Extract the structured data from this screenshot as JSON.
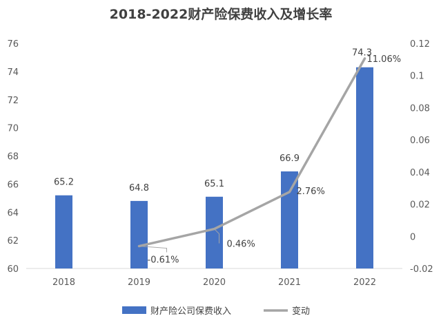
{
  "chart_data": {
    "type": "bar+line",
    "title": "2018-2022财产险保费收入及增长率",
    "categories": [
      "2018",
      "2019",
      "2020",
      "2021",
      "2022"
    ],
    "series": [
      {
        "name": "财产险公司保费收入",
        "kind": "bar",
        "axis": "left",
        "color": "#4472C4",
        "values": [
          65.2,
          64.8,
          65.1,
          66.9,
          74.3
        ],
        "labels": [
          "65.2",
          "64.8",
          "65.1",
          "66.9",
          "74.3"
        ]
      },
      {
        "name": "变动",
        "kind": "line",
        "axis": "right",
        "color": "#A5A5A5",
        "values": [
          null,
          -0.0061,
          0.0046,
          0.0276,
          0.1106
        ],
        "labels": [
          "",
          "-0.61%",
          "0.46%",
          "2.76%",
          "11.06%"
        ]
      }
    ],
    "y_left": {
      "min": 60,
      "max": 76,
      "step": 2,
      "ticks": [
        "60",
        "62",
        "64",
        "66",
        "68",
        "70",
        "72",
        "74",
        "76"
      ]
    },
    "y_right": {
      "min": -0.02,
      "max": 0.12,
      "step": 0.02,
      "ticks": [
        "-0.02",
        "0",
        "0.02",
        "0.04",
        "0.06",
        "0.08",
        "0.1",
        "0.12"
      ]
    },
    "legend_position": "bottom",
    "grid": false
  }
}
